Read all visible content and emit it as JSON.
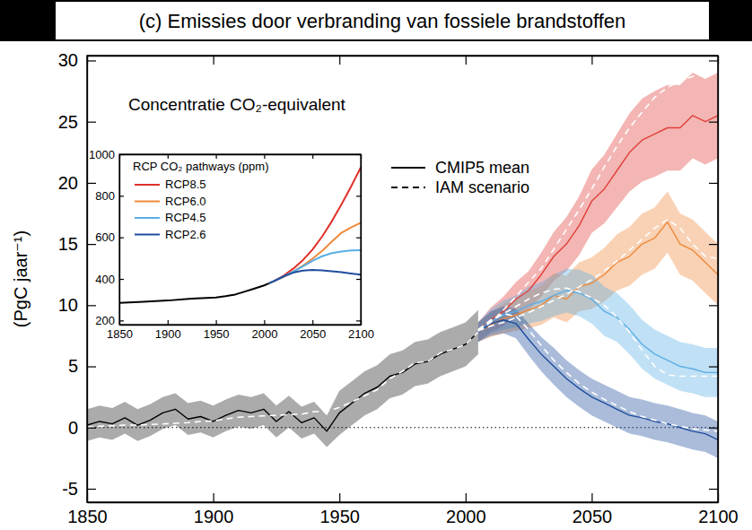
{
  "chart_data": [
    {
      "type": "line",
      "title": "(c) Emissies door verbranding van fossiele brandstoffen",
      "y_label": "(PgC jaar⁻¹)",
      "annotation": "Concentratie CO₂-equivalent",
      "xlim": [
        1850,
        2100
      ],
      "xticks": [
        1850,
        1900,
        1950,
        2000,
        2050,
        2100
      ],
      "ylim": [
        -6.1,
        30.4
      ],
      "yticks": [
        -5,
        0,
        5,
        10,
        15,
        20,
        25,
        30
      ],
      "hline": 0,
      "grid": false,
      "legend": "top",
      "series": [
        {
          "name": "CMIP5 mean",
          "color": "#000000",
          "line_style": "solid",
          "x": [
            1850,
            1855,
            1860,
            1865,
            1870,
            1875,
            1880,
            1885,
            1890,
            1895,
            1900,
            1905,
            1910,
            1915,
            1920,
            1925,
            1930,
            1935,
            1940,
            1945,
            1950,
            1955,
            1960,
            1965,
            1970,
            1975,
            1980,
            1985,
            1990,
            1995,
            2000,
            2005
          ],
          "values": [
            0.2,
            0.5,
            0.3,
            0.8,
            0.2,
            0.6,
            1.2,
            1.5,
            0.7,
            0.9,
            0.5,
            1.0,
            1.4,
            1.2,
            1.5,
            0.5,
            1.3,
            0.4,
            0.8,
            -0.3,
            1.2,
            2.0,
            2.8,
            3.3,
            4.2,
            4.5,
            5.2,
            5.4,
            6.0,
            6.4,
            6.8,
            7.8
          ],
          "lower": [
            -1.1,
            -0.8,
            -1.0,
            -0.5,
            -1.1,
            -0.7,
            -0.1,
            0.2,
            -0.6,
            -0.4,
            -0.8,
            -0.3,
            0.1,
            -0.1,
            0.2,
            -0.8,
            0.0,
            -0.9,
            -0.5,
            -1.6,
            -0.6,
            0.2,
            1.0,
            1.5,
            2.4,
            2.7,
            3.4,
            3.6,
            4.2,
            4.6,
            5.0,
            6.0
          ],
          "upper": [
            1.5,
            1.8,
            1.6,
            2.1,
            1.5,
            1.9,
            2.5,
            2.8,
            2.0,
            2.2,
            1.8,
            2.3,
            2.7,
            2.5,
            2.8,
            1.8,
            2.6,
            1.7,
            2.1,
            1.0,
            3.0,
            3.8,
            4.6,
            5.1,
            6.0,
            6.3,
            7.0,
            7.2,
            7.8,
            8.2,
            8.6,
            9.6
          ]
        },
        {
          "name": "IAM scenario",
          "color": "#ffffff",
          "line_style": "dashed",
          "x": [
            1850,
            1855,
            1860,
            1865,
            1870,
            1875,
            1880,
            1885,
            1890,
            1895,
            1900,
            1905,
            1910,
            1915,
            1920,
            1925,
            1930,
            1935,
            1940,
            1945,
            1950,
            1955,
            1960,
            1965,
            1970,
            1975,
            1980,
            1985,
            1990,
            1995,
            2000,
            2005
          ],
          "values": [
            0.05,
            0.1,
            0.15,
            0.2,
            0.2,
            0.25,
            0.3,
            0.35,
            0.4,
            0.5,
            0.55,
            0.7,
            0.85,
            0.9,
            0.95,
            1.0,
            1.05,
            1.1,
            1.3,
            1.3,
            1.65,
            2.1,
            2.6,
            3.1,
            4.0,
            4.6,
            5.3,
            5.4,
            6.1,
            6.4,
            6.8,
            7.8
          ]
        },
        {
          "name": "CMIP5 mean",
          "color": "#e0403a",
          "line_style": "solid",
          "x": [
            2005,
            2010,
            2015,
            2020,
            2025,
            2030,
            2035,
            2040,
            2045,
            2050,
            2055,
            2060,
            2065,
            2070,
            2075,
            2080,
            2085,
            2090,
            2095,
            2100
          ],
          "values": [
            7.8,
            8.8,
            9.5,
            10.5,
            11.2,
            12.5,
            14.0,
            15.0,
            16.5,
            18.5,
            19.5,
            21.0,
            22.5,
            23.5,
            24.0,
            24.5,
            24.5,
            25.5,
            25.0,
            25.5
          ],
          "lower": [
            7.0,
            7.8,
            8.3,
            9.1,
            9.6,
            10.7,
            12.0,
            12.8,
            14.1,
            15.9,
            16.7,
            18.0,
            19.3,
            20.1,
            20.5,
            21.0,
            21.0,
            22.0,
            21.5,
            22.0
          ],
          "upper": [
            8.6,
            9.8,
            10.7,
            11.9,
            12.8,
            14.3,
            16.0,
            17.2,
            18.9,
            21.1,
            22.3,
            24.0,
            25.7,
            26.9,
            27.5,
            28.0,
            28.0,
            29.0,
            28.5,
            29.0
          ]
        },
        {
          "name": "IAM scenario",
          "color": "#ffffff",
          "line_style": "dashed",
          "x": [
            2005,
            2010,
            2015,
            2020,
            2025,
            2030,
            2035,
            2040,
            2045,
            2050,
            2055,
            2060,
            2065,
            2070,
            2075,
            2080,
            2085,
            2090,
            2095,
            2100
          ],
          "values": [
            7.9,
            8.6,
            9.6,
            10.7,
            11.9,
            13.0,
            14.6,
            16.2,
            17.8,
            19.5,
            21.3,
            23.0,
            24.5,
            25.8,
            27.0,
            27.8,
            28.3,
            28.7,
            29.0,
            29.2
          ]
        },
        {
          "name": "CMIP5 mean",
          "color": "#ee8a3c",
          "line_style": "solid",
          "x": [
            2005,
            2010,
            2015,
            2020,
            2025,
            2030,
            2035,
            2040,
            2045,
            2050,
            2055,
            2060,
            2065,
            2070,
            2075,
            2080,
            2085,
            2090,
            2095,
            2100
          ],
          "values": [
            7.8,
            8.4,
            8.9,
            9.2,
            9.6,
            10.0,
            10.8,
            10.5,
            11.5,
            11.8,
            12.5,
            13.5,
            14.0,
            15.0,
            15.5,
            16.8,
            15.0,
            14.5,
            13.5,
            12.5
          ],
          "lower": [
            7.0,
            7.4,
            7.7,
            7.9,
            8.1,
            8.4,
            9.0,
            8.6,
            9.5,
            9.7,
            10.3,
            11.2,
            11.6,
            12.5,
            13.0,
            14.3,
            12.5,
            12.0,
            11.0,
            10.0
          ],
          "upper": [
            8.6,
            9.4,
            10.1,
            10.5,
            11.1,
            11.6,
            12.6,
            12.4,
            13.5,
            13.9,
            14.7,
            15.8,
            16.4,
            17.5,
            18.0,
            19.3,
            17.5,
            17.0,
            16.0,
            15.0
          ]
        },
        {
          "name": "IAM scenario",
          "color": "#ffffff",
          "line_style": "dashed",
          "x": [
            2005,
            2010,
            2015,
            2020,
            2025,
            2030,
            2035,
            2040,
            2045,
            2050,
            2055,
            2060,
            2065,
            2070,
            2075,
            2080,
            2085,
            2090,
            2095,
            2100
          ],
          "values": [
            7.9,
            8.3,
            8.6,
            9.0,
            9.4,
            9.9,
            10.4,
            10.9,
            11.5,
            12.1,
            12.8,
            13.6,
            14.5,
            15.4,
            16.3,
            17.0,
            16.3,
            15.0,
            14.0,
            13.8
          ]
        },
        {
          "name": "CMIP5 mean",
          "color": "#5aaee6",
          "line_style": "solid",
          "x": [
            2005,
            2010,
            2015,
            2020,
            2025,
            2030,
            2035,
            2040,
            2045,
            2050,
            2055,
            2060,
            2065,
            2070,
            2075,
            2080,
            2085,
            2090,
            2095,
            2100
          ],
          "values": [
            7.8,
            8.7,
            9.2,
            9.5,
            10.0,
            10.3,
            10.8,
            11.2,
            11.0,
            10.5,
            9.5,
            9.0,
            8.0,
            6.8,
            6.0,
            5.5,
            5.0,
            4.8,
            4.5,
            4.5
          ],
          "lower": [
            7.0,
            7.7,
            8.0,
            8.2,
            8.5,
            8.7,
            9.1,
            9.4,
            9.1,
            8.5,
            7.5,
            7.0,
            6.0,
            4.8,
            4.0,
            3.5,
            3.0,
            2.8,
            2.5,
            2.5
          ],
          "upper": [
            8.6,
            9.7,
            10.4,
            10.8,
            11.5,
            11.9,
            12.5,
            13.0,
            12.9,
            12.5,
            11.5,
            11.0,
            10.0,
            8.8,
            8.0,
            7.5,
            7.0,
            6.8,
            6.5,
            6.5
          ]
        },
        {
          "name": "IAM scenario",
          "color": "#ffffff",
          "line_style": "dashed",
          "x": [
            2005,
            2010,
            2015,
            2020,
            2025,
            2030,
            2035,
            2040,
            2045,
            2050,
            2055,
            2060,
            2065,
            2070,
            2075,
            2080,
            2085,
            2090,
            2095,
            2100
          ],
          "values": [
            8.0,
            8.7,
            9.3,
            9.9,
            10.5,
            11.0,
            11.3,
            11.4,
            11.1,
            10.6,
            10.0,
            9.0,
            7.8,
            6.3,
            5.0,
            4.3,
            4.2,
            4.2,
            4.2,
            4.2
          ]
        },
        {
          "name": "CMIP5 mean",
          "color": "#1f4e9e",
          "line_style": "solid",
          "x": [
            2005,
            2010,
            2015,
            2020,
            2025,
            2030,
            2035,
            2040,
            2045,
            2050,
            2055,
            2060,
            2065,
            2070,
            2075,
            2080,
            2085,
            2090,
            2095,
            2100
          ],
          "values": [
            7.8,
            8.5,
            8.8,
            8.5,
            7.2,
            6.0,
            5.0,
            4.0,
            3.2,
            2.5,
            2.0,
            1.5,
            1.0,
            0.8,
            0.5,
            0.3,
            0.0,
            -0.3,
            -0.5,
            -1.0
          ],
          "lower": [
            7.0,
            7.5,
            7.7,
            7.3,
            5.9,
            4.6,
            3.5,
            2.5,
            1.7,
            1.0,
            0.5,
            0.0,
            -0.5,
            -0.7,
            -1.0,
            -1.2,
            -1.5,
            -1.8,
            -2.0,
            -2.5
          ],
          "upper": [
            8.6,
            9.5,
            9.9,
            9.7,
            8.5,
            7.4,
            6.5,
            5.5,
            4.7,
            4.0,
            3.5,
            3.0,
            2.5,
            2.3,
            2.0,
            1.8,
            1.5,
            1.2,
            1.0,
            0.5
          ]
        },
        {
          "name": "IAM scenario",
          "color": "#ffffff",
          "line_style": "dashed",
          "x": [
            2005,
            2010,
            2015,
            2020,
            2025,
            2030,
            2035,
            2040,
            2045,
            2050,
            2055,
            2060,
            2065,
            2070,
            2075,
            2080,
            2085,
            2090,
            2095,
            2100
          ],
          "values": [
            8.0,
            8.8,
            9.3,
            9.1,
            8.0,
            6.7,
            5.5,
            4.5,
            3.6,
            2.9,
            2.3,
            1.8,
            1.3,
            0.9,
            0.6,
            0.3,
            0.1,
            -0.1,
            -0.2,
            -0.3
          ]
        }
      ]
    },
    {
      "type": "line",
      "legend_title": "RCP CO₂ pathways (ppm)",
      "xlim": [
        1850,
        2100
      ],
      "xticks": [
        1850,
        1900,
        1950,
        2000,
        2050,
        2100
      ],
      "ylim": [
        180,
        1000
      ],
      "yticks": [
        200,
        400,
        600,
        800,
        1000
      ],
      "grid": false,
      "legend": "upper left",
      "series": [
        {
          "color": "#000000",
          "x": [
            1850,
            1875,
            1900,
            1925,
            1950,
            1960,
            1970,
            1980,
            1990,
            2000,
            2005
          ],
          "values": [
            285,
            290,
            296,
            305,
            311,
            317,
            325,
            339,
            354,
            369,
            379
          ]
        },
        {
          "name": "RCP8.5",
          "color": "#e0302a",
          "x": [
            2005,
            2010,
            2020,
            2030,
            2040,
            2050,
            2060,
            2070,
            2080,
            2090,
            2100
          ],
          "values": [
            379,
            390,
            415,
            449,
            490,
            541,
            604,
            677,
            758,
            845,
            936
          ]
        },
        {
          "name": "RCP6.0",
          "color": "#f08a3c",
          "x": [
            2005,
            2010,
            2020,
            2030,
            2040,
            2050,
            2060,
            2070,
            2080,
            2090,
            2100
          ],
          "values": [
            379,
            389,
            409,
            434,
            463,
            497,
            535,
            579,
            622,
            648,
            670
          ]
        },
        {
          "name": "RCP4.5",
          "color": "#5aaee6",
          "x": [
            2005,
            2010,
            2020,
            2030,
            2040,
            2050,
            2060,
            2070,
            2080,
            2090,
            2100
          ],
          "values": [
            379,
            390,
            411,
            435,
            460,
            487,
            509,
            524,
            532,
            537,
            538
          ]
        },
        {
          "name": "RCP2.6",
          "color": "#1f4e9e",
          "x": [
            2005,
            2010,
            2020,
            2030,
            2040,
            2050,
            2060,
            2070,
            2080,
            2090,
            2100
          ],
          "values": [
            379,
            389,
            412,
            430,
            440,
            443,
            441,
            437,
            432,
            426,
            421
          ]
        }
      ]
    }
  ]
}
